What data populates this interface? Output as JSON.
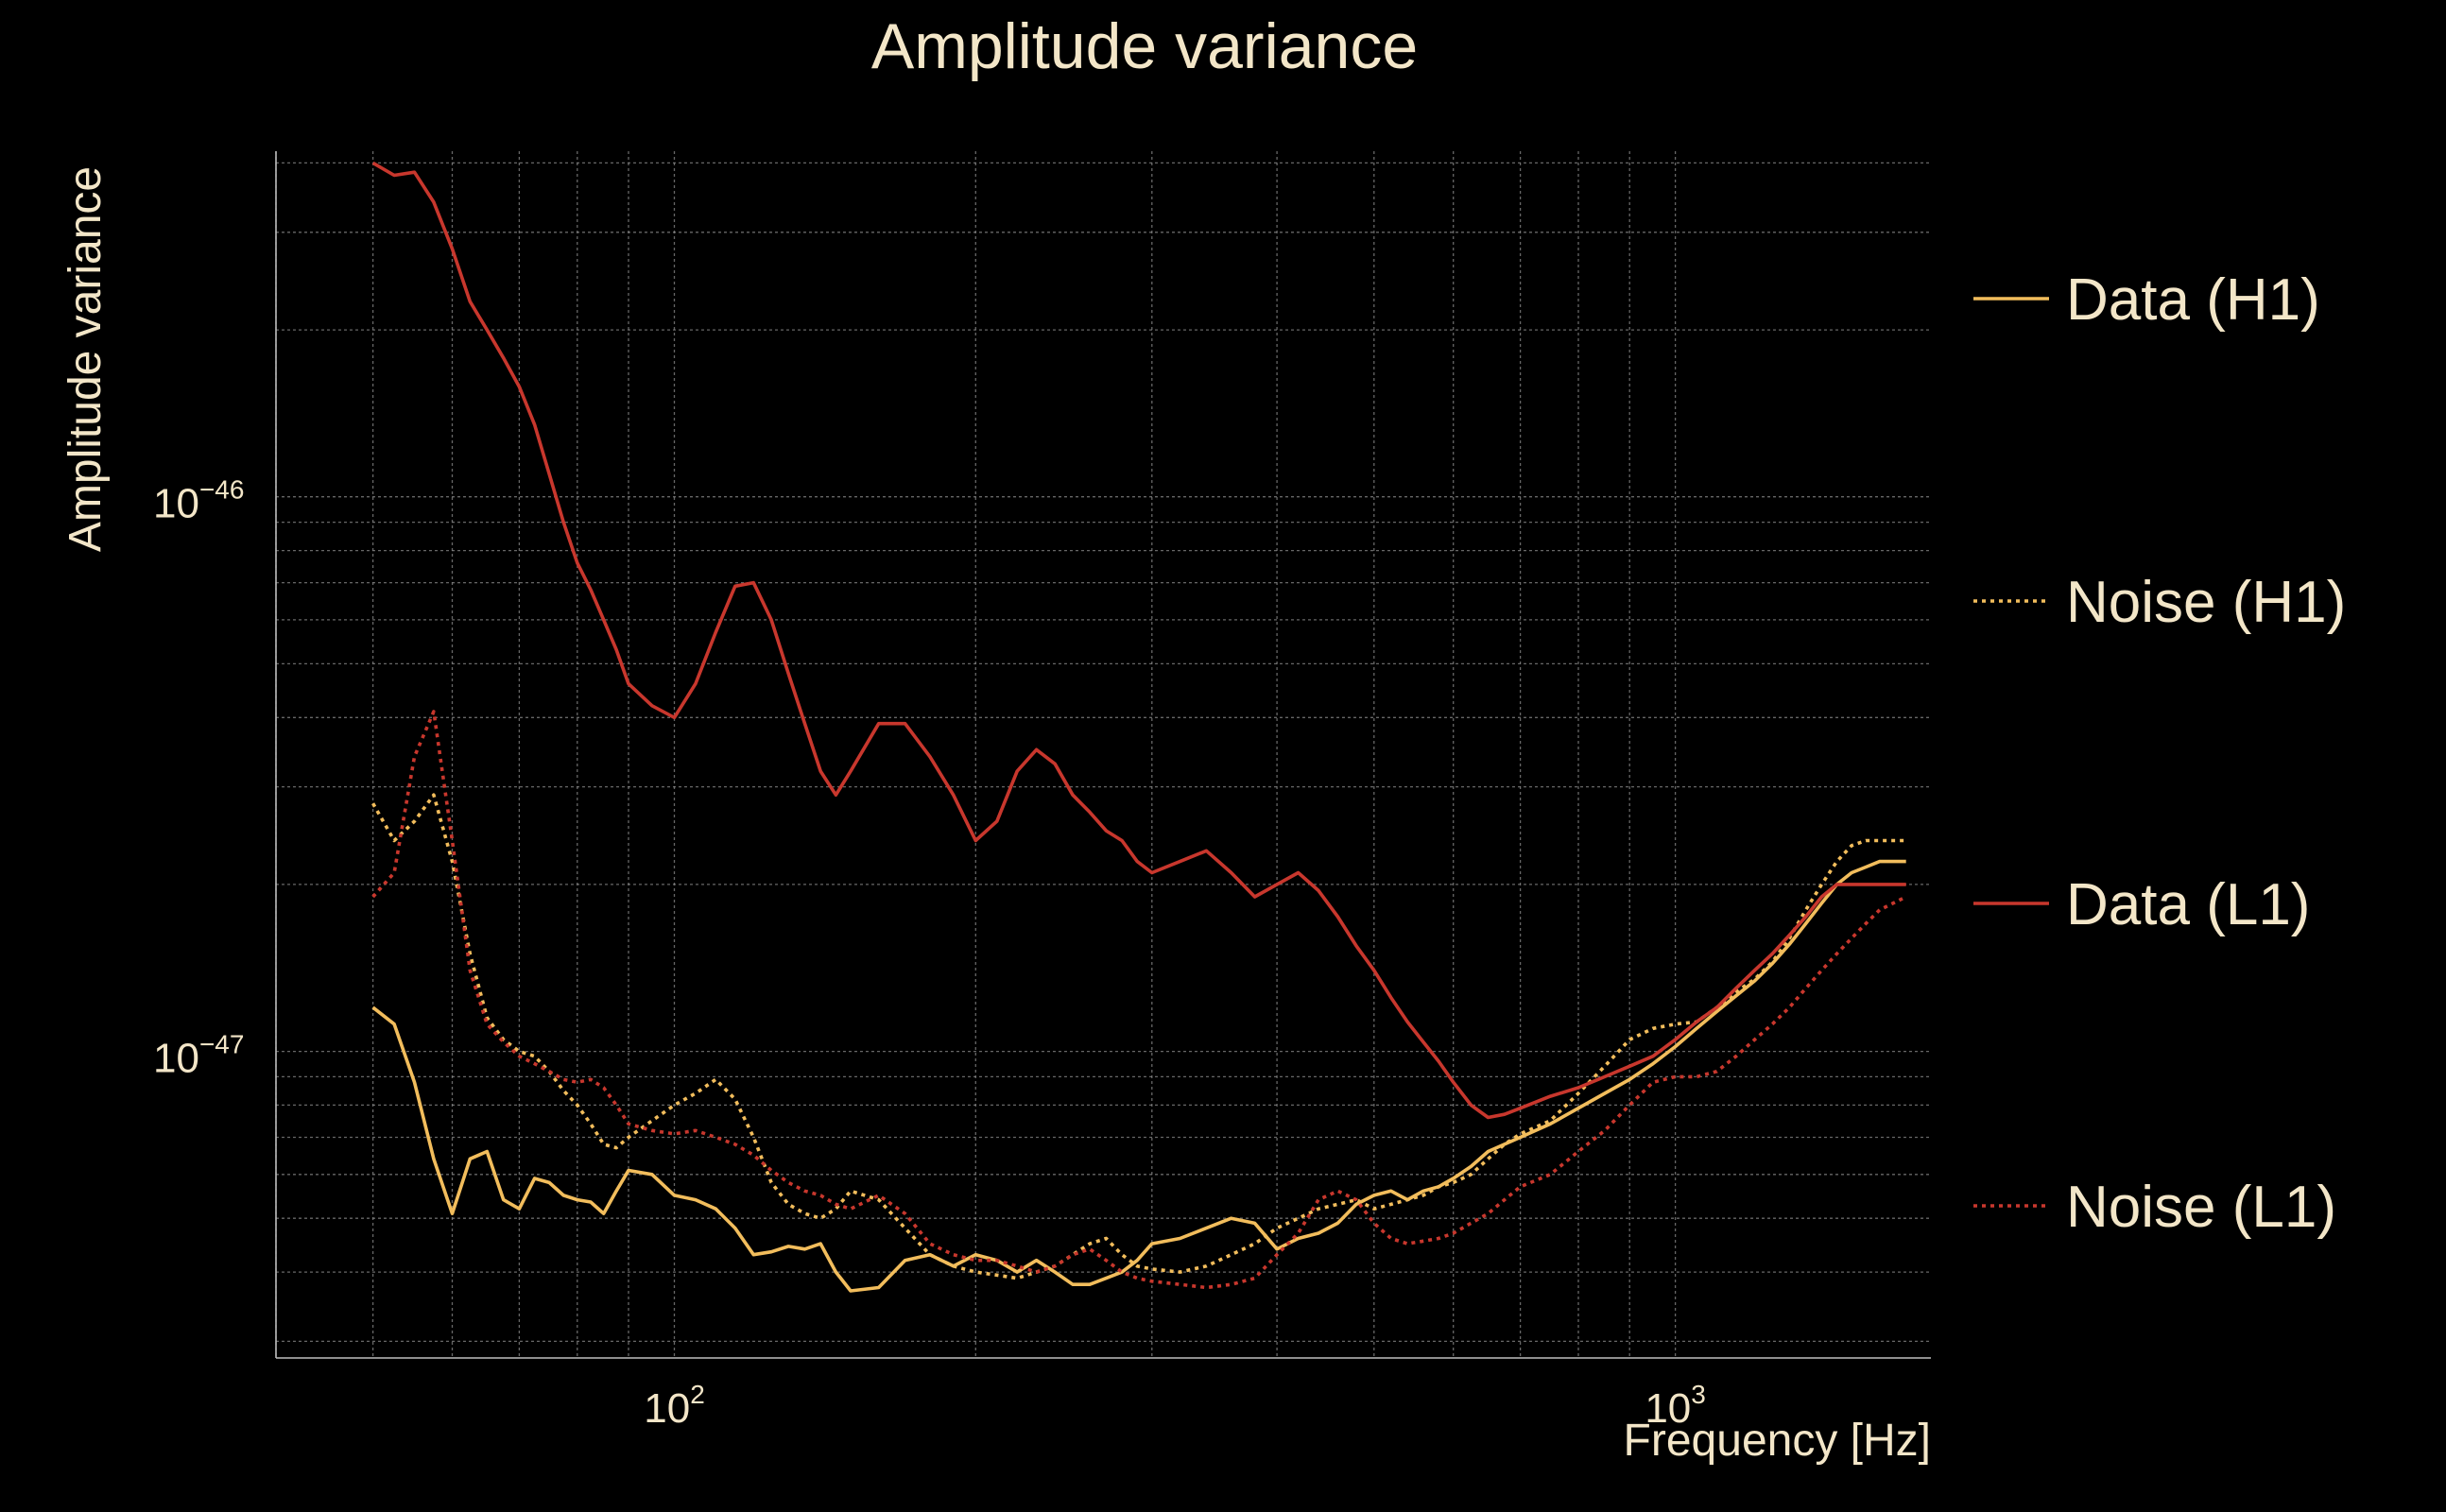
{
  "chart_data": {
    "type": "line",
    "title": "Amplitude variance",
    "xlabel": "Frequency [Hz]",
    "ylabel": "Amplitude variance",
    "xscale": "log",
    "yscale": "log",
    "xlim": [
      40,
      1800
    ],
    "ylim": [
      2.8e-48,
      4.2e-46
    ],
    "grid": true,
    "legend_position": "right",
    "x_ticks": [
      {
        "base": "10",
        "exp": "2",
        "value": 100
      },
      {
        "base": "10",
        "exp": "3",
        "value": 1000
      }
    ],
    "y_ticks": [
      {
        "base": "10",
        "exp": "−46",
        "value": 1e-46
      },
      {
        "base": "10",
        "exp": "−47",
        "value": 1e-47
      }
    ],
    "x": [
      50,
      52.5,
      55,
      57.5,
      60,
      62.5,
      65,
      67.5,
      70,
      72.5,
      75,
      77.5,
      80,
      82.5,
      85,
      87.5,
      90,
      95,
      100,
      105,
      110,
      115,
      120,
      125,
      130,
      135,
      140,
      145,
      150,
      160,
      170,
      180,
      190,
      200,
      210,
      220,
      230,
      240,
      250,
      260,
      270,
      280,
      290,
      300,
      320,
      340,
      360,
      380,
      400,
      420,
      440,
      460,
      480,
      500,
      520,
      540,
      560,
      580,
      600,
      625,
      650,
      675,
      700,
      750,
      800,
      850,
      900,
      950,
      1000,
      1050,
      1100,
      1150,
      1200,
      1250,
      1300,
      1350,
      1400,
      1450,
      1500,
      1550,
      1600,
      1650,
      1700
    ],
    "series": [
      {
        "name": "Data (H1)",
        "color": "#f2bd5c",
        "style": "solid",
        "values": [
          1.2e-47,
          1.12e-47,
          8.8e-48,
          6.4e-48,
          5.1e-48,
          6.4e-48,
          6.6e-48,
          5.4e-48,
          5.2e-48,
          5.9e-48,
          5.8e-48,
          5.5e-48,
          5.4e-48,
          5.35e-48,
          5.1e-48,
          5.6e-48,
          6.1e-48,
          6e-48,
          5.5e-48,
          5.4e-48,
          5.2e-48,
          4.8e-48,
          4.3e-48,
          4.35e-48,
          4.45e-48,
          4.4e-48,
          4.5e-48,
          4e-48,
          3.7e-48,
          3.75e-48,
          4.2e-48,
          4.3e-48,
          4.1e-48,
          4.3e-48,
          4.2e-48,
          4e-48,
          4.2e-48,
          4e-48,
          3.8e-48,
          3.8e-48,
          3.9e-48,
          4e-48,
          4.2e-48,
          4.5e-48,
          4.6e-48,
          4.8e-48,
          5e-48,
          4.9e-48,
          4.4e-48,
          4.6e-48,
          4.7e-48,
          4.9e-48,
          5.3e-48,
          5.5e-48,
          5.6e-48,
          5.4e-48,
          5.6e-48,
          5.7e-48,
          5.9e-48,
          6.2e-48,
          6.6e-48,
          6.8e-48,
          7e-48,
          7.4e-48,
          7.9e-48,
          8.4e-48,
          8.9e-48,
          9.5e-48,
          1.02e-47,
          1.1e-47,
          1.18e-47,
          1.26e-47,
          1.34e-47,
          1.44e-47,
          1.56e-47,
          1.7e-47,
          1.85e-47,
          2e-47,
          2.1e-47,
          2.15e-47,
          2.2e-47,
          2.2e-47,
          2.2e-47
        ]
      },
      {
        "name": "Noise (H1)",
        "color": "#f2bd5c",
        "style": "dotted",
        "values": [
          2.8e-47,
          2.4e-47,
          2.6e-47,
          2.9e-47,
          2.2e-47,
          1.5e-47,
          1.15e-47,
          1.05e-47,
          1e-47,
          9.8e-48,
          9.2e-48,
          8.5e-48,
          8e-48,
          7.4e-48,
          6.8e-48,
          6.7e-48,
          7e-48,
          7.5e-48,
          8e-48,
          8.4e-48,
          8.9e-48,
          8.2e-48,
          7e-48,
          5.8e-48,
          5.3e-48,
          5.1e-48,
          5e-48,
          5.2e-48,
          5.6e-48,
          5.4e-48,
          4.8e-48,
          4.3e-48,
          4.1e-48,
          4e-48,
          3.95e-48,
          3.9e-48,
          4e-48,
          4.1e-48,
          4.3e-48,
          4.5e-48,
          4.6e-48,
          4.3e-48,
          4.1e-48,
          4.05e-48,
          4e-48,
          4.1e-48,
          4.3e-48,
          4.5e-48,
          4.8e-48,
          5e-48,
          5.2e-48,
          5.3e-48,
          5.4e-48,
          5.2e-48,
          5.3e-48,
          5.4e-48,
          5.5e-48,
          5.7e-48,
          5.8e-48,
          6e-48,
          6.4e-48,
          6.8e-48,
          7.1e-48,
          7.5e-48,
          8.4e-48,
          9.4e-48,
          1.05e-47,
          1.1e-47,
          1.12e-47,
          1.13e-47,
          1.2e-47,
          1.28e-47,
          1.35e-47,
          1.45e-47,
          1.6e-47,
          1.8e-47,
          2e-47,
          2.2e-47,
          2.35e-47,
          2.4e-47,
          2.4e-47,
          2.4e-47,
          2.4e-47
        ]
      },
      {
        "name": "Data (L1)",
        "color": "#c8372d",
        "style": "solid",
        "values": [
          4e-46,
          3.8e-46,
          3.85e-46,
          3.4e-46,
          2.8e-46,
          2.25e-46,
          2e-46,
          1.78e-46,
          1.58e-46,
          1.35e-46,
          1.1e-46,
          9e-47,
          7.6e-47,
          6.8e-47,
          6e-47,
          5.3e-47,
          4.6e-47,
          4.2e-47,
          4e-47,
          4.6e-47,
          5.7e-47,
          6.9e-47,
          7e-47,
          6e-47,
          4.8e-47,
          3.9e-47,
          3.2e-47,
          2.9e-47,
          3.2e-47,
          3.9e-47,
          3.9e-47,
          3.4e-47,
          2.9e-47,
          2.4e-47,
          2.6e-47,
          3.2e-47,
          3.5e-47,
          3.3e-47,
          2.9e-47,
          2.7e-47,
          2.5e-47,
          2.4e-47,
          2.2e-47,
          2.1e-47,
          2.2e-47,
          2.3e-47,
          2.1e-47,
          1.9e-47,
          2e-47,
          2.1e-47,
          1.95e-47,
          1.75e-47,
          1.55e-47,
          1.4e-47,
          1.25e-47,
          1.13e-47,
          1.04e-47,
          9.6e-48,
          8.8e-48,
          8e-48,
          7.6e-48,
          7.7e-48,
          7.9e-48,
          8.3e-48,
          8.6e-48,
          9e-48,
          9.4e-48,
          9.8e-48,
          1.05e-47,
          1.13e-47,
          1.2e-47,
          1.3e-47,
          1.4e-47,
          1.5e-47,
          1.62e-47,
          1.75e-47,
          1.9e-47,
          2e-47,
          2e-47,
          2e-47,
          2e-47,
          2e-47,
          2e-47
        ]
      },
      {
        "name": "Noise (L1)",
        "color": "#c8372d",
        "style": "dotted",
        "values": [
          1.9e-47,
          2.1e-47,
          3.4e-47,
          4.1e-47,
          2.4e-47,
          1.4e-47,
          1.12e-47,
          1.04e-47,
          9.8e-48,
          9.5e-48,
          9.2e-48,
          8.9e-48,
          8.8e-48,
          8.9e-48,
          8.6e-48,
          8e-48,
          7.4e-48,
          7.2e-48,
          7.1e-48,
          7.2e-48,
          7e-48,
          6.8e-48,
          6.5e-48,
          6.1e-48,
          5.8e-48,
          5.6e-48,
          5.5e-48,
          5.3e-48,
          5.2e-48,
          5.5e-48,
          5.1e-48,
          4.5e-48,
          4.3e-48,
          4.2e-48,
          4.2e-48,
          4.1e-48,
          4e-48,
          4.1e-48,
          4.3e-48,
          4.4e-48,
          4.2e-48,
          4e-48,
          3.9e-48,
          3.85e-48,
          3.8e-48,
          3.75e-48,
          3.8e-48,
          3.9e-48,
          4.3e-48,
          4.7e-48,
          5.4e-48,
          5.6e-48,
          5.4e-48,
          4.9e-48,
          4.6e-48,
          4.5e-48,
          4.55e-48,
          4.6e-48,
          4.7e-48,
          4.9e-48,
          5.1e-48,
          5.4e-48,
          5.7e-48,
          6e-48,
          6.6e-48,
          7.2e-48,
          8e-48,
          8.8e-48,
          9e-48,
          9e-48,
          9.2e-48,
          9.8e-48,
          1.05e-47,
          1.12e-47,
          1.2e-47,
          1.3e-47,
          1.4e-47,
          1.5e-47,
          1.6e-47,
          1.7e-47,
          1.8e-47,
          1.85e-47,
          1.9e-47
        ]
      }
    ]
  }
}
